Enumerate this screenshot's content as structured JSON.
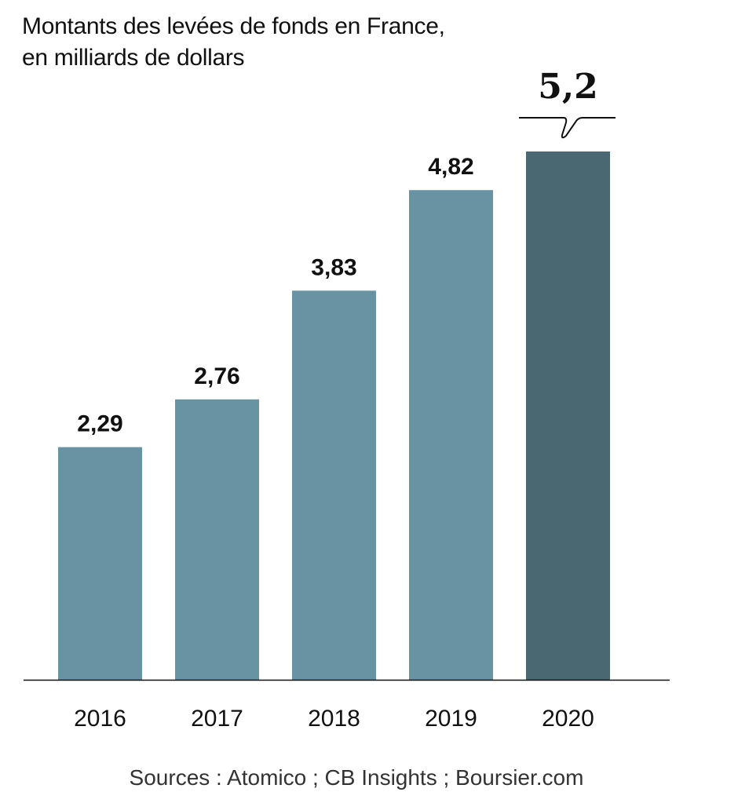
{
  "chart_data": {
    "type": "bar",
    "title": "Montants des levées de fonds en France,",
    "subtitle": "en milliards de dollars",
    "categories": [
      "2016",
      "2017",
      "2018",
      "2019",
      "2020"
    ],
    "values": [
      2.29,
      2.76,
      3.83,
      4.82,
      5.2
    ],
    "value_labels": [
      "2,29",
      "2,76",
      "3,83",
      "4,82",
      "5,2"
    ],
    "highlight_index": 4,
    "colors": {
      "bar": "#6793a3",
      "highlight": "#4a6872",
      "axis": "#111111",
      "text": "#111111"
    },
    "xlabel": "",
    "ylabel": "",
    "ylim": [
      0,
      5.2
    ],
    "grid": false,
    "legend": "none",
    "source": "Sources : Atomico ; CB Insights ; Boursier.com"
  }
}
